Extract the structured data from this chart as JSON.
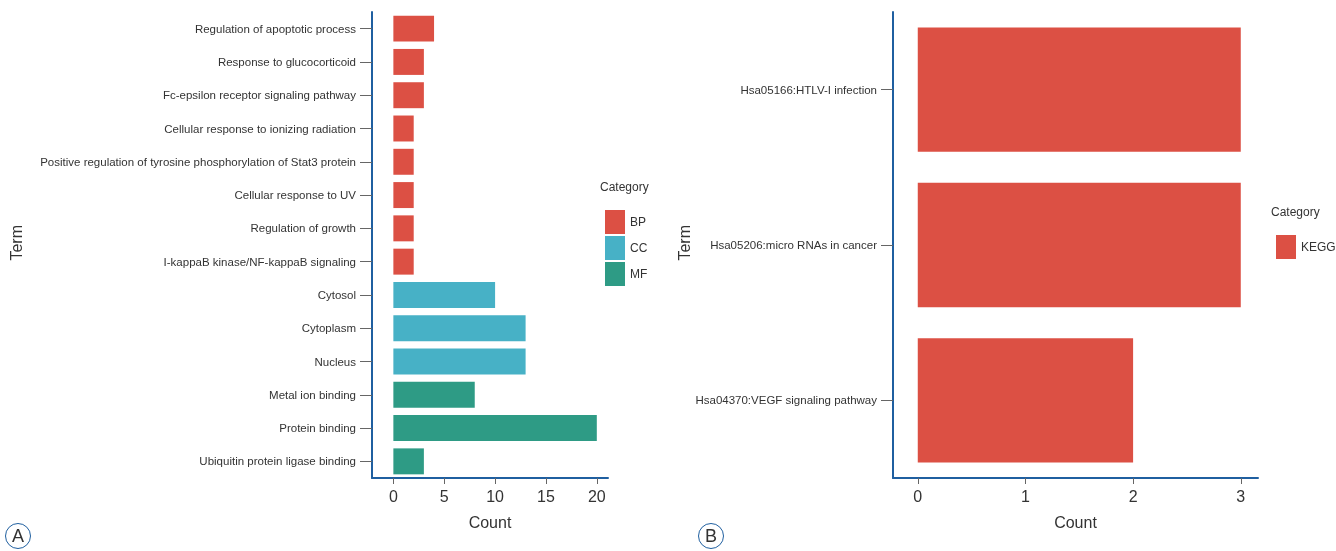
{
  "chart_data": [
    {
      "type": "bar",
      "orientation": "horizontal",
      "stacked": true,
      "xlabel": "Count",
      "ylabel": "Term",
      "legend_title": "Category",
      "legend": "right",
      "grid": false,
      "annotations": [
        "A"
      ],
      "categories": [
        "Regulation of apoptotic process",
        "Response to glucocorticoid",
        "Fc-epsilon receptor signaling pathway",
        "Cellular response to ionizing radiation",
        "Positive regulation of tyrosine phosphorylation of Stat3 protein",
        "Cellular response to UV",
        "Regulation of growth",
        "I-kappaB kinase/NF-kappaB signaling",
        "Cytosol",
        "Cytoplasm",
        "Nucleus",
        "Metal ion binding",
        "Protein binding",
        "Ubiquitin protein ligase binding"
      ],
      "series": [
        {
          "name": "BP",
          "color": "#dc5044",
          "values": [
            4,
            3,
            3,
            2,
            2,
            2,
            2,
            2,
            null,
            null,
            null,
            null,
            null,
            null
          ]
        },
        {
          "name": "CC",
          "color": "#47b1c6",
          "values": [
            null,
            null,
            null,
            null,
            null,
            null,
            null,
            null,
            10,
            13,
            13,
            null,
            null,
            null
          ]
        },
        {
          "name": "MF",
          "color": "#2e9b85",
          "values": [
            null,
            null,
            null,
            null,
            null,
            null,
            null,
            null,
            null,
            null,
            null,
            8,
            20,
            3
          ]
        }
      ],
      "xlim": [
        -2.1,
        21.1
      ],
      "xticks": [
        0,
        5,
        10,
        15,
        20
      ]
    },
    {
      "type": "bar",
      "orientation": "horizontal",
      "xlabel": "Count",
      "ylabel": "Term",
      "legend_title": "Category",
      "legend": "right",
      "grid": false,
      "annotations": [
        "B"
      ],
      "categories": [
        "Hsa05166:HTLV-I infection",
        "Hsa05206:micro RNAs in cancer",
        "Hsa04370:VEGF signaling pathway"
      ],
      "series": [
        {
          "name": "KEGG",
          "color": "#dc5044",
          "values": [
            3,
            3,
            2
          ]
        }
      ],
      "xlim": [
        -0.23,
        3.16
      ],
      "xticks": [
        0,
        1,
        2,
        3
      ]
    }
  ]
}
